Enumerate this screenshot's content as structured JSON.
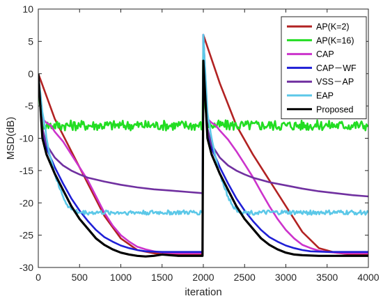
{
  "chart_data": {
    "type": "line",
    "title": "",
    "xlabel": "iteration",
    "ylabel": "MSD(dB)",
    "xlim": [
      0,
      4000
    ],
    "ylim": [
      -30,
      10
    ],
    "xticks": [
      0,
      500,
      1000,
      1500,
      2000,
      2500,
      3000,
      3500,
      4000
    ],
    "yticks": [
      10,
      5,
      0,
      -5,
      -10,
      -15,
      -20,
      -25,
      -30
    ],
    "grid": false,
    "legend_position": "top-right",
    "series": [
      {
        "name": "AP(K=2)",
        "color": "#b22222",
        "x": [
          0,
          200,
          400,
          600,
          800,
          1000,
          1200,
          1400,
          1600,
          1800,
          1990,
          2000,
          2200,
          2400,
          2600,
          2800,
          3000,
          3200,
          3400,
          3600,
          3800,
          4000
        ],
        "y": [
          0,
          -7,
          -12,
          -17,
          -22,
          -25.5,
          -27.3,
          -27.8,
          -28,
          -28,
          -28,
          6,
          -1.5,
          -8,
          -12.5,
          -16.5,
          -20.5,
          -24.5,
          -27,
          -27.7,
          -28,
          -28
        ]
      },
      {
        "name": "AP(K=16)",
        "color": "#22dd22",
        "noise": 0.8,
        "x": [
          0,
          20,
          50,
          100,
          300,
          500,
          1000,
          1500,
          1990,
          2000,
          2020,
          2050,
          2100,
          2500,
          3000,
          3500,
          4000
        ],
        "y": [
          0,
          -5,
          -7.8,
          -8,
          -8,
          -8,
          -8,
          -8,
          -8,
          6,
          -5,
          -7.8,
          -8,
          -8,
          -8,
          -8,
          -8
        ]
      },
      {
        "name": "CAP",
        "color": "#cc33cc",
        "x": [
          0,
          50,
          100,
          150,
          200,
          300,
          400,
          500,
          600,
          700,
          800,
          900,
          1000,
          1100,
          1200,
          1300,
          1400,
          1500,
          1700,
          1990,
          2000,
          2050,
          2100,
          2150,
          2200,
          2300,
          2400,
          2500,
          2600,
          2700,
          2800,
          2900,
          3000,
          3100,
          3200,
          3300,
          3400,
          3500,
          3700,
          4000
        ],
        "y": [
          0,
          -7,
          -7.6,
          -8,
          -9,
          -10.5,
          -12.5,
          -14.5,
          -16.5,
          -19,
          -21.5,
          -23.5,
          -25,
          -26,
          -26.8,
          -27.2,
          -27.5,
          -27.7,
          -27.8,
          -27.8,
          6,
          -7,
          -7.6,
          -8,
          -8.8,
          -10.2,
          -12,
          -14,
          -16,
          -18.3,
          -20.5,
          -22.5,
          -24.2,
          -25.5,
          -26.5,
          -27,
          -27.4,
          -27.6,
          -27.8,
          -27.8
        ]
      },
      {
        "name": "CAP－WF",
        "color": "#1f1fd6",
        "x": [
          0,
          50,
          100,
          200,
          300,
          400,
          500,
          600,
          700,
          800,
          900,
          1000,
          1100,
          1200,
          1300,
          1500,
          1700,
          1990,
          2000,
          2050,
          2100,
          2200,
          2300,
          2400,
          2500,
          2600,
          2700,
          2800,
          2900,
          3000,
          3100,
          3200,
          3300,
          3500,
          3700,
          4000
        ],
        "y": [
          0,
          -9,
          -11.5,
          -14.5,
          -17,
          -19.3,
          -21.2,
          -22.8,
          -24.2,
          -25.3,
          -26,
          -26.6,
          -27,
          -27.3,
          -27.5,
          -27.6,
          -27.6,
          -27.6,
          6,
          -9,
          -11.5,
          -14.5,
          -17,
          -19.3,
          -21.2,
          -22.8,
          -24.2,
          -25.3,
          -26,
          -26.6,
          -27,
          -27.3,
          -27.5,
          -27.6,
          -27.6,
          -27.6
        ]
      },
      {
        "name": "VSS－AP",
        "color": "#7030a0",
        "x": [
          0,
          50,
          100,
          200,
          300,
          400,
          500,
          600,
          800,
          1000,
          1200,
          1400,
          1600,
          1800,
          1990,
          2000,
          2050,
          2100,
          2200,
          2300,
          2400,
          2500,
          2600,
          2800,
          3000,
          3200,
          3400,
          3600,
          3800,
          4000
        ],
        "y": [
          0,
          -8.5,
          -11,
          -13,
          -14.2,
          -15,
          -15.6,
          -16.1,
          -16.7,
          -17.2,
          -17.6,
          -17.9,
          -18.1,
          -18.3,
          -18.5,
          6,
          -8.5,
          -11,
          -13,
          -14.2,
          -15,
          -15.6,
          -16.1,
          -16.8,
          -17.3,
          -17.8,
          -18.2,
          -18.5,
          -18.8,
          -19
        ]
      },
      {
        "name": "EAP",
        "color": "#5cc8e8",
        "noise": 0.35,
        "x": [
          0,
          50,
          100,
          150,
          200,
          250,
          300,
          350,
          400,
          450,
          500,
          700,
          1000,
          1500,
          1990,
          2000,
          2050,
          2100,
          2150,
          2200,
          2250,
          2300,
          2350,
          2400,
          2450,
          2500,
          2700,
          3000,
          3500,
          4000
        ],
        "y": [
          0,
          -6,
          -10,
          -13,
          -15.5,
          -17.5,
          -19,
          -20.3,
          -21,
          -21.3,
          -21.5,
          -21.5,
          -21.5,
          -21.5,
          -21.5,
          6,
          -6,
          -10,
          -13,
          -15.5,
          -17.5,
          -19,
          -20.3,
          -21,
          -21.3,
          -21.5,
          -21.5,
          -21.5,
          -21.5,
          -21.5
        ]
      },
      {
        "name": "Proposed",
        "color": "#000000",
        "x": [
          0,
          50,
          100,
          200,
          300,
          400,
          500,
          600,
          700,
          800,
          900,
          1000,
          1100,
          1200,
          1300,
          1400,
          1500,
          1600,
          1700,
          1990,
          2000,
          2050,
          2100,
          2200,
          2300,
          2400,
          2500,
          2600,
          2700,
          2800,
          2900,
          3000,
          3100,
          3200,
          3400,
          3600,
          3800,
          4000
        ],
        "y": [
          0,
          -10,
          -12.5,
          -15.5,
          -18,
          -20.5,
          -22.5,
          -24,
          -25.5,
          -26.5,
          -27.2,
          -27.7,
          -28,
          -28.2,
          -28.3,
          -28.2,
          -28,
          -28.1,
          -28.2,
          -28.2,
          2,
          -10,
          -12.5,
          -15.5,
          -18,
          -20.5,
          -22.5,
          -24,
          -25.5,
          -26.5,
          -27.2,
          -27.7,
          -28,
          -28.1,
          -28.2,
          -28.2,
          -28.2,
          -28.2
        ]
      }
    ]
  }
}
